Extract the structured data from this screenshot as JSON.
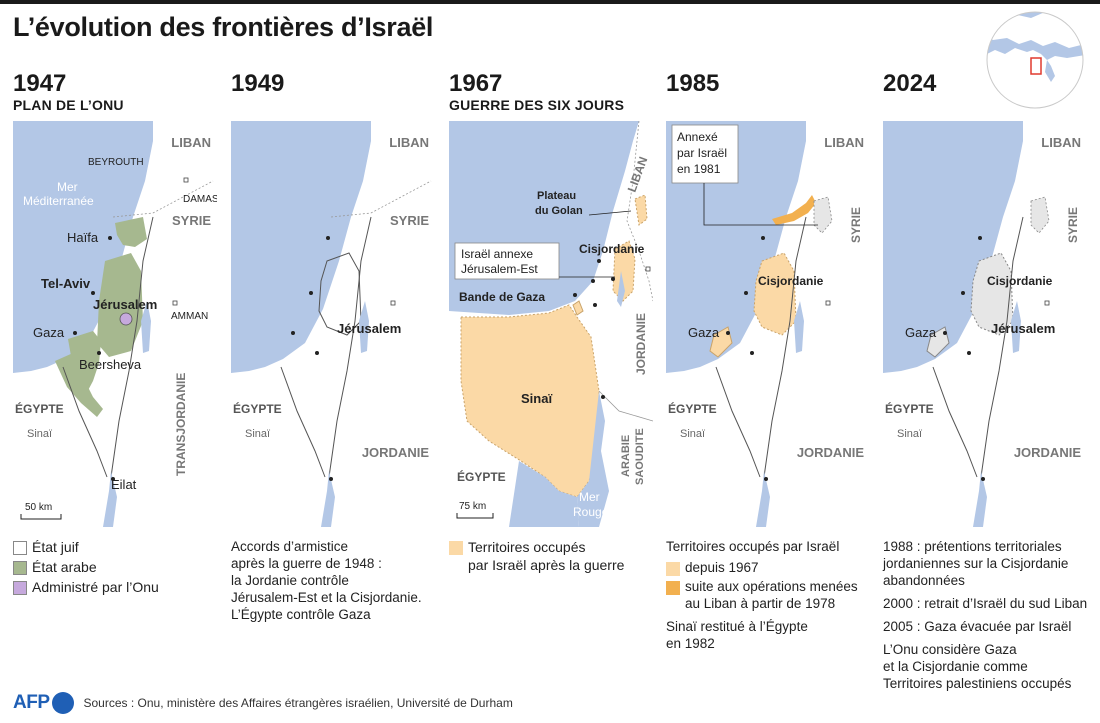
{
  "title": "L’évolution des frontières d’Israël",
  "colors": {
    "sea": "#b3c7e6",
    "land": "#ffffff",
    "israel_fill": "#ffffff",
    "arab_state": "#a6b88f",
    "un_admin": "#c6a9dd",
    "occupied_1967": "#fbd9a6",
    "occupied_1978": "#f2b04f",
    "palestinian_2024": "#e6e6e6",
    "border": "#555555"
  },
  "panels": [
    {
      "year": "1947",
      "subtitle": "PLAN DE L’ONU",
      "labels": {
        "liban": "LIBAN",
        "beyrouth": "BEYROUTH",
        "mer": "Mer",
        "mediterranee": "Méditerranée",
        "damas": "DAMAS",
        "syrie": "SYRIE",
        "haifa": "Haïfa",
        "telaviv": "Tel-Aviv",
        "jerusalem": "Jérusalem",
        "amman": "AMMAN",
        "gaza": "Gaza",
        "beersheva": "Beersheva",
        "egypte": "ÉGYPTE",
        "sinai": "Sinaï",
        "transjordanie": "TRANSJORDANIE",
        "eilat": "Eilat",
        "scale": "50 km"
      },
      "legend": [
        {
          "swatch": "israel_fill",
          "text": "État juif"
        },
        {
          "swatch": "arab_state",
          "text": "État arabe"
        },
        {
          "swatch": "un_admin",
          "text": "Administré par l’Onu"
        }
      ]
    },
    {
      "year": "1949",
      "subtitle": "",
      "labels": {
        "liban": "LIBAN",
        "syrie": "SYRIE",
        "jerusalem": "Jérusalem",
        "egypte": "ÉGYPTE",
        "sinai": "Sinaï",
        "jordanie": "JORDANIE"
      },
      "text": "Accords d’armistice\naprès la guerre de 1948 :\nla Jordanie contrôle\nJérusalem-Est et la Cisjordanie.\nL’Égypte contrôle Gaza"
    },
    {
      "year": "1967",
      "subtitle": "GUERRE DES SIX JOURS",
      "labels": {
        "plateau": "Plateau",
        "golan": "du Golan",
        "liban": "LIBAN",
        "cisjordanie": "Cisjordanie",
        "annex1": "Israël annexe",
        "annex2": "Jérusalem-Est",
        "gaza": "Bande de Gaza",
        "jordanie": "JORDANIE",
        "sinai": "Sinaï",
        "arabie1": "ARABIE",
        "arabie2": "SAOUDITE",
        "egypte": "ÉGYPTE",
        "scale": "75 km",
        "mer": "Mer",
        "rouge": "Rouge"
      },
      "legend": [
        {
          "swatch": "occupied_1967",
          "text": "Territoires occupés\npar Israël après la guerre"
        }
      ]
    },
    {
      "year": "1985",
      "subtitle": "",
      "labels": {
        "annexe1": "Annexé",
        "annexe2": "par Israël",
        "annexe3": "en 1981",
        "liban": "LIBAN",
        "syrie": "SYRIE",
        "cisjordanie": "Cisjordanie",
        "gaza": "Gaza",
        "egypte": "ÉGYPTE",
        "sinai": "Sinaï",
        "jordanie": "JORDANIE"
      },
      "legend_title": "Territoires occupés par Israël",
      "legend": [
        {
          "swatch": "occupied_1967",
          "text": "depuis 1967"
        },
        {
          "swatch": "occupied_1978",
          "text": "suite aux opérations menées\nau Liban à partir de 1978"
        }
      ],
      "note": "Sinaï restitué à l’Égypte\nen 1982"
    },
    {
      "year": "2024",
      "subtitle": "",
      "labels": {
        "liban": "LIBAN",
        "syrie": "SYRIE",
        "cisjordanie": "Cisjordanie",
        "gaza": "Gaza",
        "jerusalem": "Jérusalem",
        "egypte": "ÉGYPTE",
        "sinai": "Sinaï",
        "jordanie": "JORDANIE"
      },
      "notes": [
        "1988 : prétentions territoriales\njordaniennes sur la Cisjordanie\nabandonnées",
        "2000 : retrait d’Israël du sud Liban",
        "2005 : Gaza évacuée par Israël",
        "L’Onu considère Gaza\net la Cisjordanie comme\nTerritoires palestiniens occupés"
      ]
    }
  ],
  "footer": {
    "logo": "AFP",
    "sources": "Sources : Onu, ministère des Affaires étrangères israélien, Université de Durham"
  }
}
